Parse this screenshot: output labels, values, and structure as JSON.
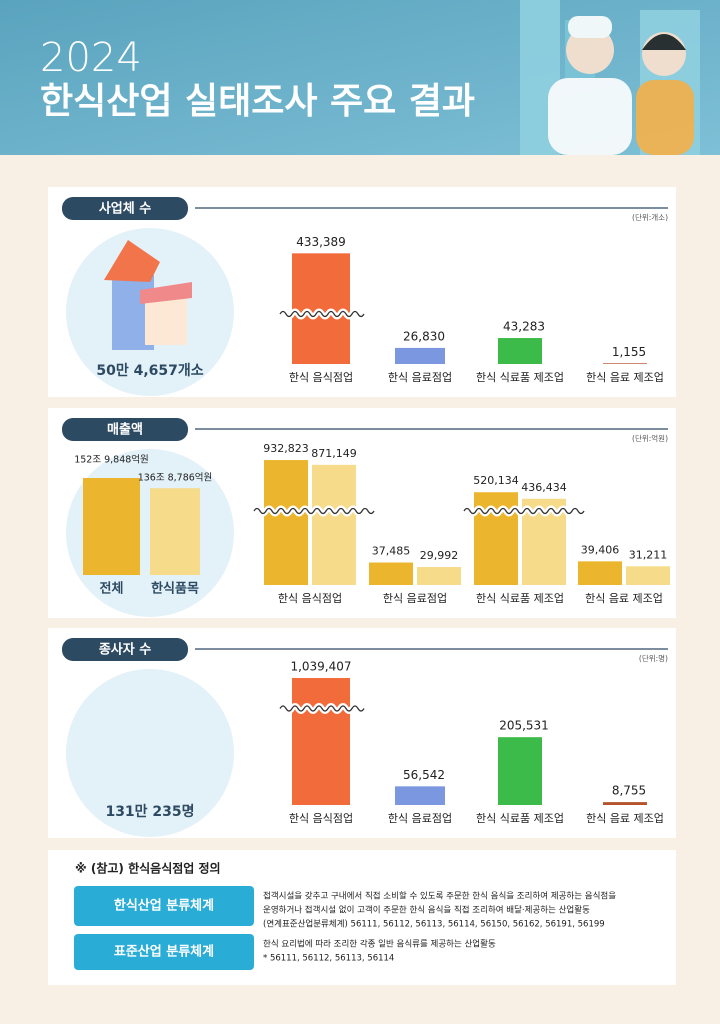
{
  "header": {
    "year": "2024",
    "title": "한식산업 실태조사 주요 결과"
  },
  "chart_data": [
    {
      "type": "bar",
      "title": "사업체 수",
      "unit": "(단위:개소)",
      "total_label": "50만 4,657개소",
      "categories": [
        "한식 음식점업",
        "한식 음료점업",
        "한식 식료품 제조업",
        "한식 음료 제조업"
      ],
      "values": [
        433389,
        26830,
        43283,
        1155
      ],
      "value_labels": [
        "433,389",
        "26,830",
        "43,283",
        "1,155"
      ],
      "colors": [
        "#f26b3a",
        "#7b97e0",
        "#3dbb4a",
        "#b5542a"
      ]
    },
    {
      "type": "grouped-bar",
      "title": "매출액",
      "unit": "(단위:억원)",
      "categories": [
        "한식 음식점업",
        "한식 음료점업",
        "한식 식료품 제조업",
        "한식 음료 제조업"
      ],
      "series": [
        {
          "name": "전체",
          "color": "#ebb52e",
          "total": 1529848,
          "total_label": "152조 9,848억원",
          "values": [
            932823,
            37485,
            520134,
            39406
          ],
          "value_labels": [
            "932,823",
            "37,485",
            "520,134",
            "39,406"
          ]
        },
        {
          "name": "한식품목",
          "color": "#f6dc8a",
          "total": 1368786,
          "total_label": "136조 8,786억원",
          "values": [
            871149,
            29992,
            436434,
            31211
          ],
          "value_labels": [
            "871,149",
            "29,992",
            "436,434",
            "31,211"
          ]
        }
      ]
    },
    {
      "type": "bar",
      "title": "종사자 수",
      "unit": "(단위:명)",
      "total_label": "131만 235명",
      "categories": [
        "한식 음식점업",
        "한식 음료점업",
        "한식 식료품 제조업",
        "한식 음료 제조업"
      ],
      "values": [
        1039407,
        56542,
        205531,
        8755
      ],
      "value_labels": [
        "1,039,407",
        "56,542",
        "205,531",
        "8,755"
      ],
      "colors": [
        "#f26b3a",
        "#7b97e0",
        "#3dbb4a",
        "#b5542a"
      ]
    }
  ],
  "note": {
    "title": "※ (참고) 한식음식점업 정의",
    "rows": [
      {
        "label": "한식산업 분류체계",
        "lines": [
          "접객시설을 갖추고 구내에서 직접 소비할 수 있도록 주문한 한식 음식을 조리하여 제공하는 음식점을",
          "운영하거나 접객시설 없이 고객이 주문한 한식 음식을 직접 조리하여 배달·제공하는 산업활동",
          "(연계표준산업분류체계) 56111, 56112, 56113, 56114, 56150, 56162, 56191, 56199"
        ]
      },
      {
        "label": "표준산업 분류체계",
        "lines": [
          "한식 요리법에 따라 조리한 각종 일반 음식류를 제공하는 산업활동",
          "* 56111, 56112, 56113, 56114"
        ]
      }
    ]
  }
}
